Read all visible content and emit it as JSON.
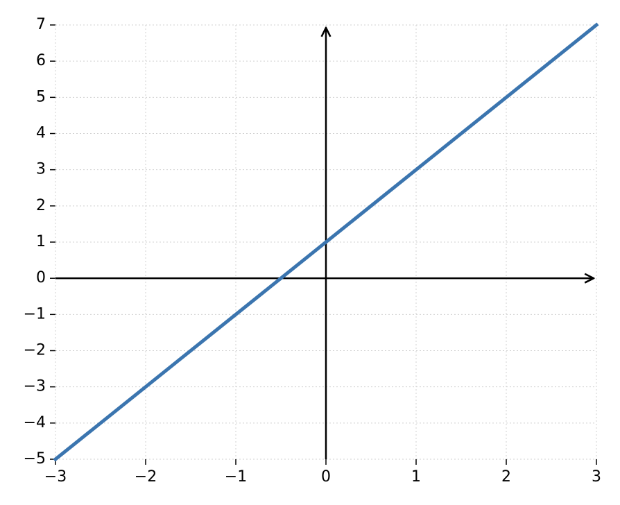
{
  "chart_data": {
    "type": "line",
    "x": [
      -3,
      3
    ],
    "values": [
      -5,
      7
    ],
    "color": "#3b75af",
    "xlim": [
      -3,
      3
    ],
    "xticks": [
      {
        "value": -3,
        "label": "−3"
      },
      {
        "value": -2,
        "label": "−2"
      },
      {
        "value": -1,
        "label": "−1"
      },
      0,
      1,
      2,
      3
    ],
    "ylim": [
      -5,
      7
    ],
    "yticks": [
      {
        "value": -5,
        "label": "−5"
      },
      {
        "value": -4,
        "label": "−4"
      },
      {
        "value": -3,
        "label": "−3"
      },
      {
        "value": -2,
        "label": "−2"
      },
      {
        "value": -1,
        "label": "−1"
      },
      0,
      1,
      2,
      3,
      4,
      5,
      6,
      7
    ],
    "grid": true
  }
}
